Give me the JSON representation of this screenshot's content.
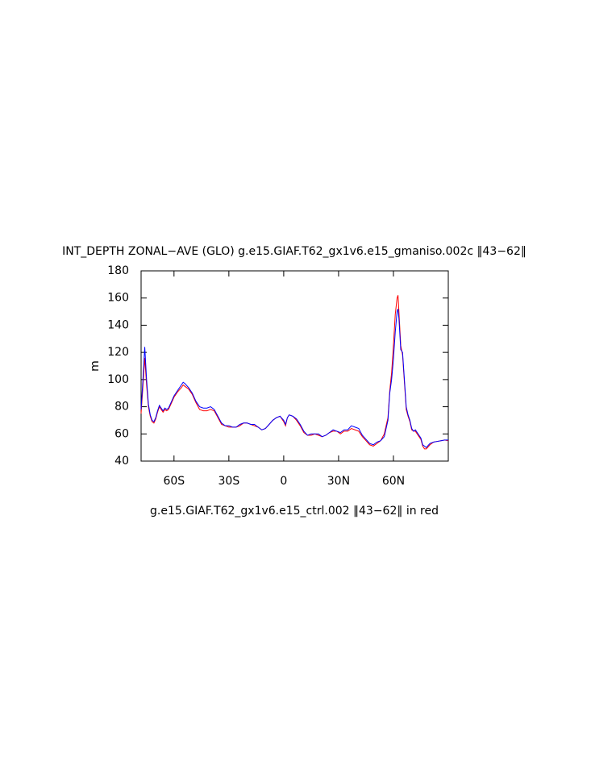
{
  "chart_data": {
    "type": "line",
    "title": "INT_DEPTH ZONAL−AVE (GLO) g.e15.GIAF.T62_gx1v6.e15_gmaniso.002c ‖43−62‖",
    "subtitle": "g.e15.GIAF.T62_gx1v6.e15_ctrl.002 ‖43−62‖ in red",
    "ylabel": "m",
    "xlim": [
      -78,
      90
    ],
    "ylim": [
      40,
      180
    ],
    "xticks": [
      {
        "value": -60,
        "label": "60S"
      },
      {
        "value": -30,
        "label": "30S"
      },
      0,
      {
        "value": 30,
        "label": "30N"
      },
      {
        "value": 60,
        "label": "60N"
      }
    ],
    "yticks": [
      40,
      60,
      80,
      100,
      120,
      140,
      160,
      180
    ],
    "x": [
      -78,
      -77,
      -76,
      -75,
      -74,
      -73,
      -72,
      -71,
      -70,
      -69,
      -68,
      -67,
      -66,
      -65,
      -64,
      -63,
      -62,
      -60,
      -58,
      -56,
      -55,
      -54,
      -52,
      -50,
      -48,
      -46,
      -44,
      -42,
      -40,
      -38,
      -36,
      -34,
      -32,
      -30,
      -28,
      -26,
      -24,
      -22,
      -20,
      -18,
      -16,
      -14,
      -12,
      -10,
      -8,
      -6,
      -4,
      -2,
      0,
      1,
      2,
      3,
      5,
      7,
      9,
      11,
      13,
      15,
      17,
      19,
      21,
      23,
      25,
      27,
      29,
      31,
      33,
      35,
      37,
      39,
      41,
      43,
      45,
      47,
      49,
      51,
      53,
      55,
      57,
      58,
      59,
      60,
      61,
      62,
      62.5,
      63,
      64,
      65,
      66,
      67,
      68,
      69,
      70,
      71,
      72,
      74,
      75,
      76,
      77,
      78,
      80,
      82,
      84,
      86,
      88,
      90
    ],
    "series": [
      {
        "color": "#0000ff",
        "values": [
          78,
          100,
          124,
          100,
          82,
          74,
          70,
          69,
          72,
          77,
          81,
          79,
          77,
          79,
          78,
          79,
          82,
          88,
          92,
          96,
          98,
          97,
          94,
          90,
          84,
          80,
          79,
          79,
          80,
          78,
          73,
          68,
          66,
          66,
          65,
          65,
          67,
          68,
          68,
          67,
          67,
          65,
          63,
          64,
          67,
          70,
          72,
          73,
          70,
          67,
          72,
          74,
          73,
          71,
          67,
          62,
          59,
          60,
          60,
          60,
          58,
          59,
          61,
          63,
          62,
          61,
          63,
          63,
          66,
          65,
          64,
          59,
          56,
          53,
          52,
          54,
          55,
          58,
          70,
          90,
          100,
          115,
          135,
          150,
          152,
          145,
          122,
          120,
          100,
          80,
          74,
          70,
          64,
          62,
          63,
          59,
          57,
          52,
          51,
          50,
          53,
          54,
          54.5,
          55,
          55.5,
          55.5
        ]
      },
      {
        "color": "#ff0000",
        "values": [
          75,
          95,
          116,
          96,
          80,
          73,
          69,
          68,
          71,
          76,
          80,
          78,
          76,
          78,
          77,
          78,
          81,
          87,
          91,
          94,
          96,
          95,
          93,
          89,
          83,
          78,
          77,
          77,
          78,
          77,
          72,
          67,
          66,
          65,
          65,
          65,
          66,
          68,
          68,
          67,
          66,
          65,
          63,
          64,
          67,
          70,
          72,
          73,
          69,
          66,
          72,
          74,
          73,
          70,
          66,
          61,
          59,
          59,
          60,
          59,
          58,
          59,
          61,
          62,
          62,
          60,
          62,
          62,
          64,
          63,
          62,
          58,
          55,
          52,
          51,
          53,
          55,
          60,
          72,
          92,
          105,
          125,
          148,
          160,
          162,
          150,
          125,
          118,
          98,
          78,
          73,
          69,
          63,
          62,
          62,
          58,
          56,
          51,
          49,
          49,
          52,
          54,
          54.5,
          55,
          55.5,
          55
        ]
      }
    ]
  }
}
